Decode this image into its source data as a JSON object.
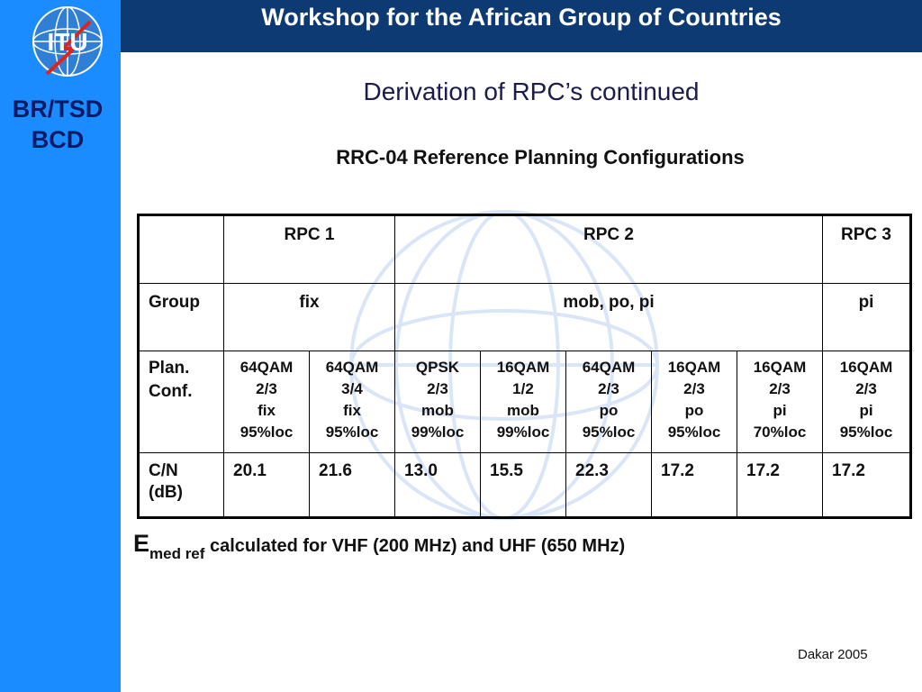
{
  "header": {
    "title": "Workshop for the African Group of Countries"
  },
  "logo": {
    "text": "ITU"
  },
  "sidebar": {
    "label_line1": "BR/TSD",
    "label_line2": "BCD"
  },
  "slide": {
    "title": "Derivation of RPC’s continued",
    "subtitle": "RRC-04 Reference Planning Configurations"
  },
  "table": {
    "header": [
      "RPC 1",
      "RPC 2",
      "RPC 3"
    ],
    "group": {
      "label": "Group",
      "values": [
        "fix",
        "mob, po, pi",
        "pi"
      ]
    },
    "plan_conf": {
      "label_line1": "Plan.",
      "label_line2": "Conf.",
      "columns": [
        [
          "64QAM",
          "2/3",
          "fix",
          "95%loc"
        ],
        [
          "64QAM",
          "3/4",
          "fix",
          "95%loc"
        ],
        [
          "QPSK",
          "2/3",
          "mob",
          "99%loc"
        ],
        [
          "16QAM",
          "1/2",
          "mob",
          "99%loc"
        ],
        [
          "64QAM",
          "2/3",
          "po",
          "95%loc"
        ],
        [
          "16QAM",
          "2/3",
          "po",
          "95%loc"
        ],
        [
          "16QAM",
          "2/3",
          "pi",
          "70%loc"
        ],
        [
          "16QAM",
          "2/3",
          "pi",
          "95%loc"
        ]
      ]
    },
    "cn": {
      "label_line1": "C/N",
      "label_line2": "(dB)",
      "values": [
        "20.1",
        "21.6",
        "13.0",
        "15.5",
        "22.3",
        "17.2",
        "17.2",
        "17.2"
      ]
    }
  },
  "footnote": {
    "symbol": "E",
    "subscript": "med ref",
    "text": " calculated for VHF (200 MHz) and UHF (650 MHz)"
  },
  "footer": {
    "text": "Dakar 2005"
  },
  "colors": {
    "topbar": "#0e3a73",
    "sidebar": "#1a8cff",
    "sidebar_text": "#0b1a66"
  }
}
